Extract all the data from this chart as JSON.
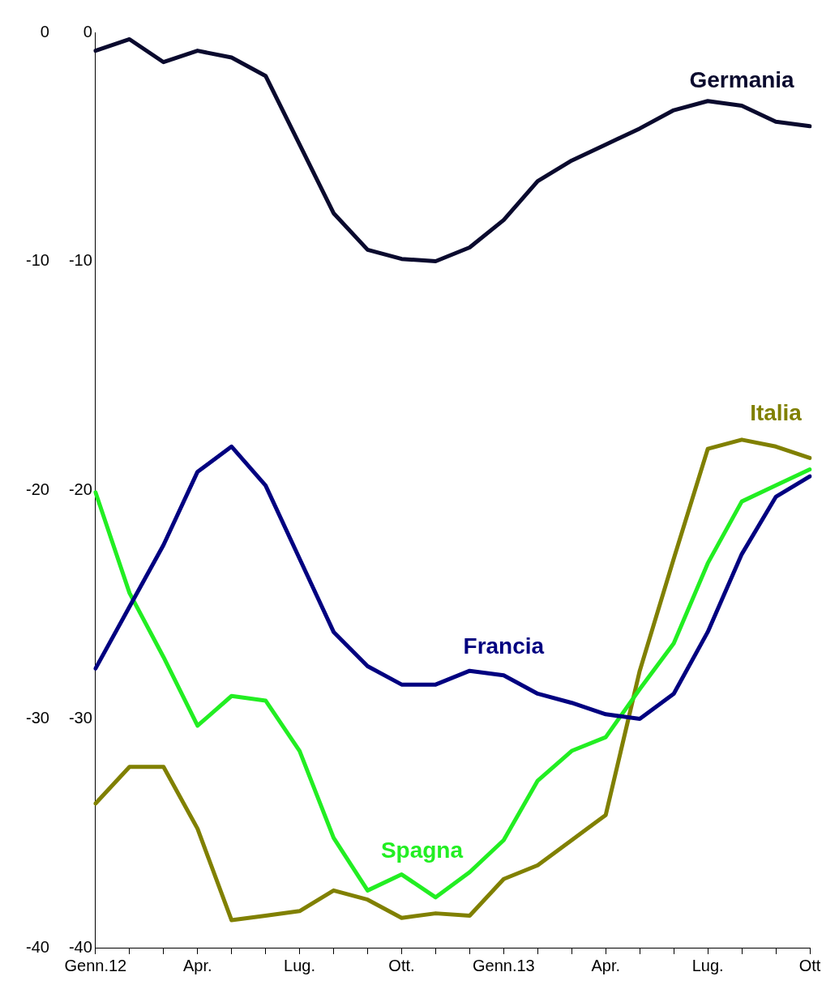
{
  "chart_data": {
    "type": "line",
    "categories": [
      "Genn.12",
      null,
      null,
      "Apr.",
      null,
      null,
      "Lug.",
      null,
      null,
      "Ott.",
      null,
      null,
      "Genn.13",
      null,
      null,
      "Apr.",
      null,
      null,
      "Lug.",
      null,
      null,
      "Ott"
    ],
    "series": [
      {
        "name": "Germania",
        "color": "#0a0a2e",
        "values": [
          -0.8,
          -0.3,
          -1.3,
          -0.8,
          -1.1,
          -1.9,
          -4.9,
          -7.9,
          -9.5,
          -9.9,
          -10.0,
          -9.4,
          -8.2,
          -6.5,
          -5.6,
          -4.9,
          -4.2,
          -3.4,
          -3.0,
          -3.2,
          -3.9,
          -4.1
        ]
      },
      {
        "name": "Francia",
        "color": "#000080",
        "values": [
          -27.8,
          -25.1,
          -22.4,
          -19.2,
          -18.1,
          -19.8,
          -23.0,
          -26.2,
          -27.7,
          -28.5,
          -28.5,
          -27.9,
          -28.1,
          -28.9,
          -29.3,
          -29.8,
          -30.0,
          -28.9,
          -26.2,
          -22.8,
          -20.3,
          -19.4
        ]
      },
      {
        "name": "Spagna",
        "color": "#22ee22",
        "values": [
          -20.1,
          -24.5,
          -27.3,
          -30.3,
          -29.0,
          -29.2,
          -31.4,
          -35.2,
          -37.5,
          -36.8,
          -37.8,
          -36.7,
          -35.3,
          -32.7,
          -31.4,
          -30.8,
          -28.7,
          -26.7,
          -23.2,
          -20.5,
          -19.8,
          -19.1
        ]
      },
      {
        "name": "Italia",
        "color": "#808000",
        "values": [
          -33.7,
          -32.1,
          -32.1,
          -34.8,
          -38.8,
          -38.6,
          -38.4,
          -37.5,
          -37.9,
          -38.7,
          -38.5,
          -38.6,
          -37.0,
          -36.4,
          -35.3,
          -34.2,
          -27.9,
          -23.0,
          -18.2,
          -17.8,
          -18.1,
          -18.6
        ]
      }
    ],
    "ylim": [
      -40,
      0
    ],
    "yticks": [
      -40,
      -30,
      -20,
      -10,
      0
    ],
    "y2lim": [
      -40,
      0
    ],
    "y2ticks": [
      -40,
      -30,
      -20,
      -10,
      0
    ],
    "grid": false,
    "legend": false,
    "marker": "none",
    "line_style": "solid"
  }
}
